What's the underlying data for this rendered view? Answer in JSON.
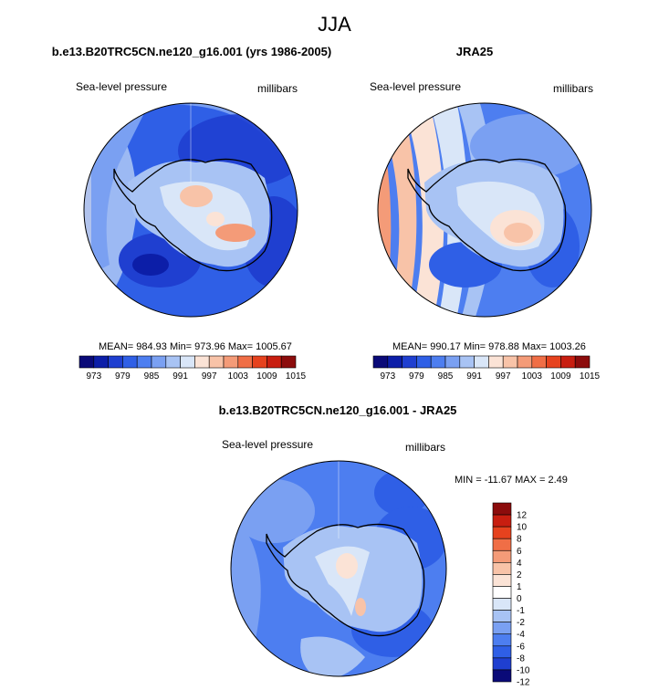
{
  "title": "JJA",
  "chart_data": [
    {
      "type": "heatmap",
      "projection": "polar-stereographic-south",
      "title": "b.e13.B20TRC5CN.ne120_g16.001 (yrs 1986-2005)",
      "left_label": "Sea-level pressure",
      "right_label": "millibars",
      "stats_text": "MEAN= 984.93  Min= 973.96  Max= 1005.67",
      "mean": 984.93,
      "min": 973.96,
      "max": 1005.67,
      "colorbar": {
        "orientation": "horizontal",
        "levels": [
          973,
          976,
          979,
          982,
          985,
          988,
          991,
          994,
          997,
          1000,
          1003,
          1006,
          1009,
          1012,
          1015
        ],
        "tick_labels": [
          "973",
          "979",
          "985",
          "991",
          "997",
          "1003",
          "1009",
          "1015"
        ]
      }
    },
    {
      "type": "heatmap",
      "projection": "polar-stereographic-south",
      "title": "JRA25",
      "left_label": "Sea-level pressure",
      "right_label": "millibars",
      "stats_text": "MEAN= 990.17  Min= 978.88  Max= 1003.26",
      "mean": 990.17,
      "min": 978.88,
      "max": 1003.26,
      "colorbar": {
        "orientation": "horizontal",
        "levels": [
          973,
          976,
          979,
          982,
          985,
          988,
          991,
          994,
          997,
          1000,
          1003,
          1006,
          1009,
          1012,
          1015
        ],
        "tick_labels": [
          "973",
          "979",
          "985",
          "991",
          "997",
          "1003",
          "1009",
          "1015"
        ]
      }
    },
    {
      "type": "heatmap",
      "projection": "polar-stereographic-south",
      "title": "b.e13.B20TRC5CN.ne120_g16.001 - JRA25",
      "left_label": "Sea-level pressure",
      "right_label": "millibars",
      "stats_text": "MIN = -11.67 MAX =   2.49",
      "min": -11.67,
      "max": 2.49,
      "colorbar": {
        "orientation": "vertical",
        "levels": [
          -12,
          -10,
          -8,
          -6,
          -4,
          -2,
          -1,
          0,
          1,
          2,
          4,
          6,
          8,
          10,
          12
        ],
        "tick_labels": [
          "12",
          "10",
          "8",
          "6",
          "4",
          "2",
          "1",
          "0",
          "-1",
          "-2",
          "-4",
          "-6",
          "-8",
          "-10",
          "-12"
        ]
      }
    }
  ],
  "colors": {
    "abs_scale": [
      "#0a0a78",
      "#0c1ea8",
      "#1f3fd0",
      "#2f5fe6",
      "#4d7ef0",
      "#7aa0f2",
      "#a8c3f4",
      "#d9e6f8",
      "#fbe3d6",
      "#f8c3a8",
      "#f49b78",
      "#f06e46",
      "#e6421e",
      "#c81e10",
      "#8c0c0c"
    ],
    "diff_scale": [
      "#8c0c0c",
      "#c81e10",
      "#e6421e",
      "#f06e46",
      "#f49b78",
      "#f8c3a8",
      "#fbe3d6",
      "#ffffff",
      "#d9e6f8",
      "#a8c3f4",
      "#7aa0f2",
      "#4d7ef0",
      "#2f5fe6",
      "#1f3fd0",
      "#0a0a78"
    ]
  }
}
